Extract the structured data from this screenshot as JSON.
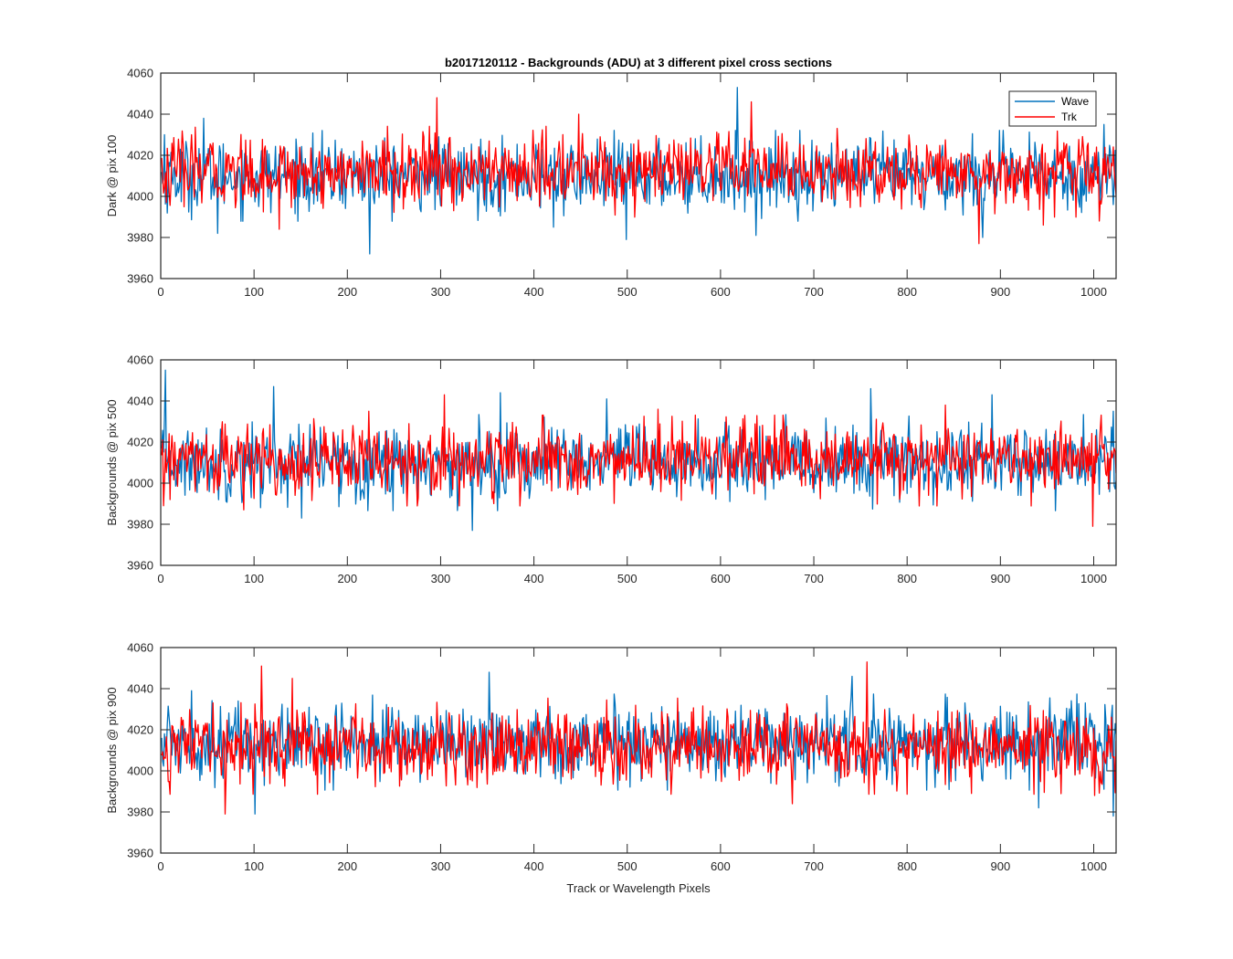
{
  "figure": {
    "title": "b2017120112 - Backgrounds (ADU) at 3 different pixel cross sections",
    "xlabel": "Track or Wavelength Pixels",
    "legend": {
      "placement": "top-right",
      "entries": [
        "Wave",
        "Trk"
      ]
    }
  },
  "colors": {
    "Wave": "#0072BD",
    "Trk": "#FF0000",
    "axes": "#262626",
    "background": "#FFFFFF"
  },
  "chart_data": [
    {
      "type": "line",
      "title": "b2017120112 - Backgrounds (ADU) at 3 different pixel cross sections",
      "xlabel": "",
      "ylabel": "Dark @ pix 100",
      "xlim": [
        0,
        1024
      ],
      "ylim": [
        3960,
        4060
      ],
      "x_ticks": [
        "0",
        "100",
        "200",
        "300",
        "400",
        "500",
        "600",
        "700",
        "800",
        "900",
        "1000"
      ],
      "y_ticks": [
        "3960",
        "3980",
        "4000",
        "4020",
        "4040",
        "4060"
      ],
      "grid": false,
      "legend": "top-right",
      "x_points": 1024,
      "series": [
        {
          "name": "Wave",
          "color": "#0072BD",
          "mean": 4010,
          "noise_sd": 8.5,
          "spikes": [
            [
              3,
              4030
            ],
            [
              45,
              4038
            ],
            [
              60,
              3982
            ],
            [
              223,
              3972
            ],
            [
              420,
              3985
            ],
            [
              498,
              3979
            ],
            [
              617,
              4053
            ],
            [
              637,
              3981
            ],
            [
              880,
              3980
            ],
            [
              1010,
              4035
            ]
          ]
        },
        {
          "name": "Trk",
          "color": "#FF0000",
          "mean": 4012,
          "noise_sd": 8.5,
          "spikes": [
            [
              5,
              3997
            ],
            [
              126,
              3984
            ],
            [
              295,
              4048
            ],
            [
              447,
              4040
            ],
            [
              632,
              4046
            ],
            [
              876,
              3977
            ],
            [
              945,
              3986
            ],
            [
              1005,
              3988
            ]
          ]
        }
      ]
    },
    {
      "type": "line",
      "title": "",
      "xlabel": "",
      "ylabel": "Backgrounds @ pix 500",
      "xlim": [
        0,
        1024
      ],
      "ylim": [
        3960,
        4060
      ],
      "x_ticks": [
        "0",
        "100",
        "200",
        "300",
        "400",
        "500",
        "600",
        "700",
        "800",
        "900",
        "1000"
      ],
      "y_ticks": [
        "3960",
        "3980",
        "4000",
        "4020",
        "4040",
        "4060"
      ],
      "grid": false,
      "x_points": 1024,
      "series": [
        {
          "name": "Wave",
          "color": "#0072BD",
          "mean": 4010,
          "noise_sd": 9,
          "spikes": [
            [
              4,
              4055
            ],
            [
              120,
              4047
            ],
            [
              150,
              3983
            ],
            [
              333,
              3977
            ],
            [
              363,
              4044
            ],
            [
              477,
              4041
            ],
            [
              760,
              4046
            ],
            [
              890,
              4043
            ],
            [
              1020,
              4035
            ]
          ]
        },
        {
          "name": "Trk",
          "color": "#FF0000",
          "mean": 4011,
          "noise_sd": 8.5,
          "spikes": [
            [
              2,
              3989
            ],
            [
              88,
              3987
            ],
            [
              222,
              4035
            ],
            [
              303,
              4043
            ],
            [
              532,
              4036
            ],
            [
              840,
              4038
            ],
            [
              998,
              3979
            ]
          ]
        }
      ]
    },
    {
      "type": "line",
      "title": "",
      "xlabel": "Track or Wavelength Pixels",
      "ylabel": "Backgrounds @ pix 900",
      "xlim": [
        0,
        1024
      ],
      "ylim": [
        3960,
        4060
      ],
      "x_ticks": [
        "0",
        "100",
        "200",
        "300",
        "400",
        "500",
        "600",
        "700",
        "800",
        "900",
        "1000"
      ],
      "y_ticks": [
        "3960",
        "3980",
        "4000",
        "4020",
        "4040",
        "4060"
      ],
      "grid": false,
      "x_points": 1024,
      "series": [
        {
          "name": "Wave",
          "color": "#0072BD",
          "mean": 4014,
          "noise_sd": 9,
          "spikes": [
            [
              32,
              4039
            ],
            [
              100,
              3979
            ],
            [
              351,
              4048
            ],
            [
              740,
              4046
            ],
            [
              940,
              3982
            ],
            [
              1020,
              3978
            ]
          ]
        },
        {
          "name": "Trk",
          "color": "#FF0000",
          "mean": 4012,
          "noise_sd": 9,
          "spikes": [
            [
              68,
              3979
            ],
            [
              107,
              4051
            ],
            [
              140,
              4045
            ],
            [
              756,
              4053
            ],
            [
              676,
              3984
            ],
            [
              1000,
              3988
            ]
          ]
        }
      ]
    }
  ]
}
